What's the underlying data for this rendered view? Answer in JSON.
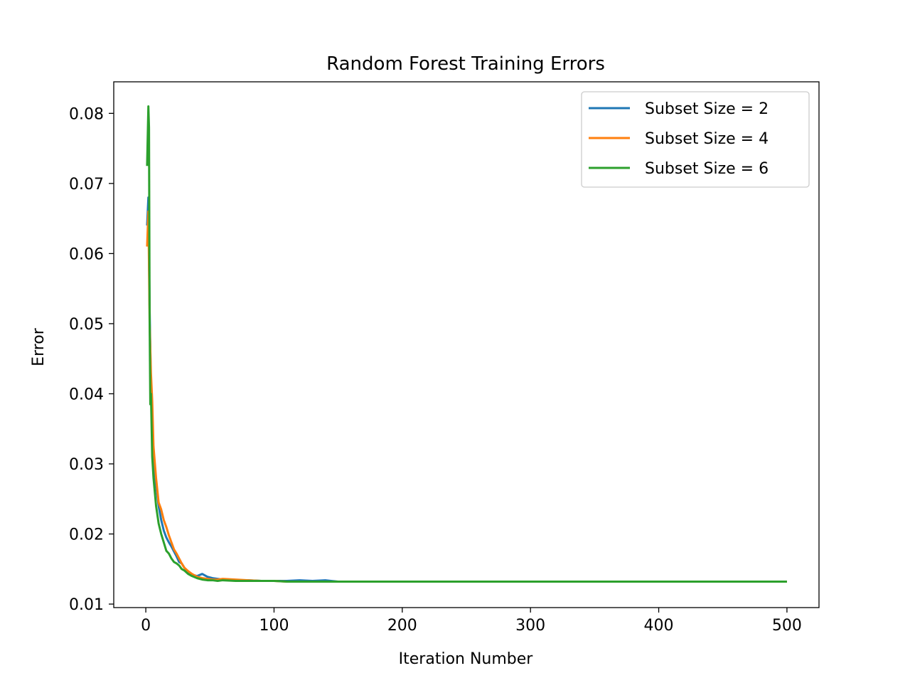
{
  "chart_data": {
    "type": "line",
    "title": "Random Forest Training Errors",
    "xlabel": "Iteration Number",
    "ylabel": "Error",
    "xlim": [
      -25,
      525
    ],
    "ylim": [
      0.0095,
      0.0845
    ],
    "xticks": [
      0,
      100,
      200,
      300,
      400,
      500
    ],
    "yticks": [
      0.01,
      0.02,
      0.03,
      0.04,
      0.05,
      0.06,
      0.07,
      0.08
    ],
    "xtick_labels": [
      "0",
      "100",
      "200",
      "300",
      "400",
      "500"
    ],
    "ytick_labels": [
      "0.01",
      "0.02",
      "0.03",
      "0.04",
      "0.05",
      "0.06",
      "0.07",
      "0.08"
    ],
    "grid": false,
    "legend_position": "top-right",
    "series": [
      {
        "name": "Subset Size = 2",
        "color": "#1f77b4",
        "x": [
          1,
          2,
          3,
          4,
          5,
          6,
          8,
          10,
          12,
          14,
          16,
          18,
          20,
          22,
          24,
          26,
          28,
          30,
          33,
          36,
          40,
          44,
          48,
          52,
          56,
          60,
          70,
          80,
          90,
          100,
          110,
          120,
          130,
          140,
          145,
          150,
          200,
          300,
          400,
          500
        ],
        "y": [
          0.064,
          0.068,
          0.052,
          0.041,
          0.036,
          0.031,
          0.027,
          0.024,
          0.022,
          0.0205,
          0.0195,
          0.0188,
          0.0182,
          0.0175,
          0.0168,
          0.016,
          0.0158,
          0.0152,
          0.0146,
          0.0142,
          0.014,
          0.0143,
          0.0139,
          0.0137,
          0.0136,
          0.0135,
          0.0134,
          0.0134,
          0.0133,
          0.0133,
          0.0133,
          0.0134,
          0.0133,
          0.0134,
          0.0133,
          0.0132,
          0.0132,
          0.0132,
          0.0132,
          0.0132
        ]
      },
      {
        "name": "Subset Size = 4",
        "color": "#ff7f0e",
        "x": [
          1,
          2,
          3,
          4,
          5,
          6,
          8,
          10,
          12,
          14,
          16,
          18,
          20,
          22,
          24,
          26,
          28,
          30,
          33,
          36,
          40,
          44,
          48,
          52,
          56,
          60,
          70,
          80,
          90,
          100,
          110,
          120,
          150,
          200,
          300,
          400,
          500
        ],
        "y": [
          0.061,
          0.066,
          0.05,
          0.043,
          0.039,
          0.0325,
          0.028,
          0.0245,
          0.0235,
          0.022,
          0.021,
          0.0198,
          0.0188,
          0.0178,
          0.0172,
          0.0165,
          0.0158,
          0.0152,
          0.0147,
          0.0143,
          0.0139,
          0.0137,
          0.0136,
          0.0135,
          0.0135,
          0.0136,
          0.0135,
          0.0134,
          0.0133,
          0.0133,
          0.0132,
          0.0132,
          0.0132,
          0.0132,
          0.0132,
          0.0132,
          0.0132
        ]
      },
      {
        "name": "Subset Size = 6",
        "color": "#2ca02c",
        "x": [
          1,
          2,
          2.5,
          3,
          3.5,
          4,
          5,
          6,
          8,
          10,
          12,
          14,
          16,
          18,
          20,
          22,
          24,
          26,
          28,
          30,
          33,
          36,
          40,
          44,
          48,
          52,
          56,
          60,
          70,
          80,
          90,
          100,
          110,
          150,
          200,
          300,
          400,
          500
        ],
        "y": [
          0.0725,
          0.081,
          0.078,
          0.05,
          0.0385,
          0.04,
          0.031,
          0.028,
          0.024,
          0.0215,
          0.02,
          0.0188,
          0.0176,
          0.0172,
          0.0165,
          0.016,
          0.0158,
          0.0155,
          0.015,
          0.0148,
          0.0143,
          0.014,
          0.0137,
          0.0135,
          0.0134,
          0.0134,
          0.0133,
          0.0134,
          0.0133,
          0.0133,
          0.0133,
          0.0133,
          0.0132,
          0.0132,
          0.0132,
          0.0132,
          0.0132,
          0.0132
        ]
      }
    ]
  }
}
